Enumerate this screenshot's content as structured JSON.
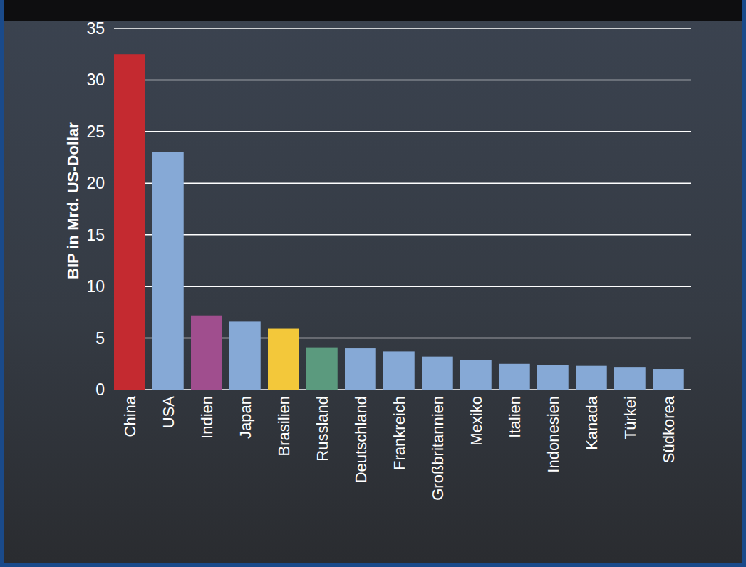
{
  "chart_data": {
    "type": "bar",
    "ylabel": "BIP in Mrd. US-Dollar",
    "categories": [
      "China",
      "USA",
      "Indien",
      "Japan",
      "Brasilien",
      "Russland",
      "Deutschland",
      "Frankreich",
      "Großbritannien",
      "Mexiko",
      "Italien",
      "Indonesien",
      "Kanada",
      "Türkei",
      "Südkorea"
    ],
    "values": [
      32.5,
      23.0,
      7.2,
      6.6,
      5.9,
      4.1,
      4.0,
      3.7,
      3.2,
      2.9,
      2.5,
      2.4,
      2.3,
      2.2,
      2.0
    ],
    "colors": [
      "#c42a30",
      "#86a9d6",
      "#a04e8e",
      "#86a9d6",
      "#f3c83a",
      "#5b9a7e",
      "#86a9d6",
      "#86a9d6",
      "#86a9d6",
      "#86a9d6",
      "#86a9d6",
      "#86a9d6",
      "#86a9d6",
      "#86a9d6",
      "#86a9d6"
    ],
    "ylim": [
      0,
      35
    ],
    "yticks": [
      0,
      5,
      10,
      15,
      20,
      25,
      30,
      35
    ],
    "grid": true
  }
}
